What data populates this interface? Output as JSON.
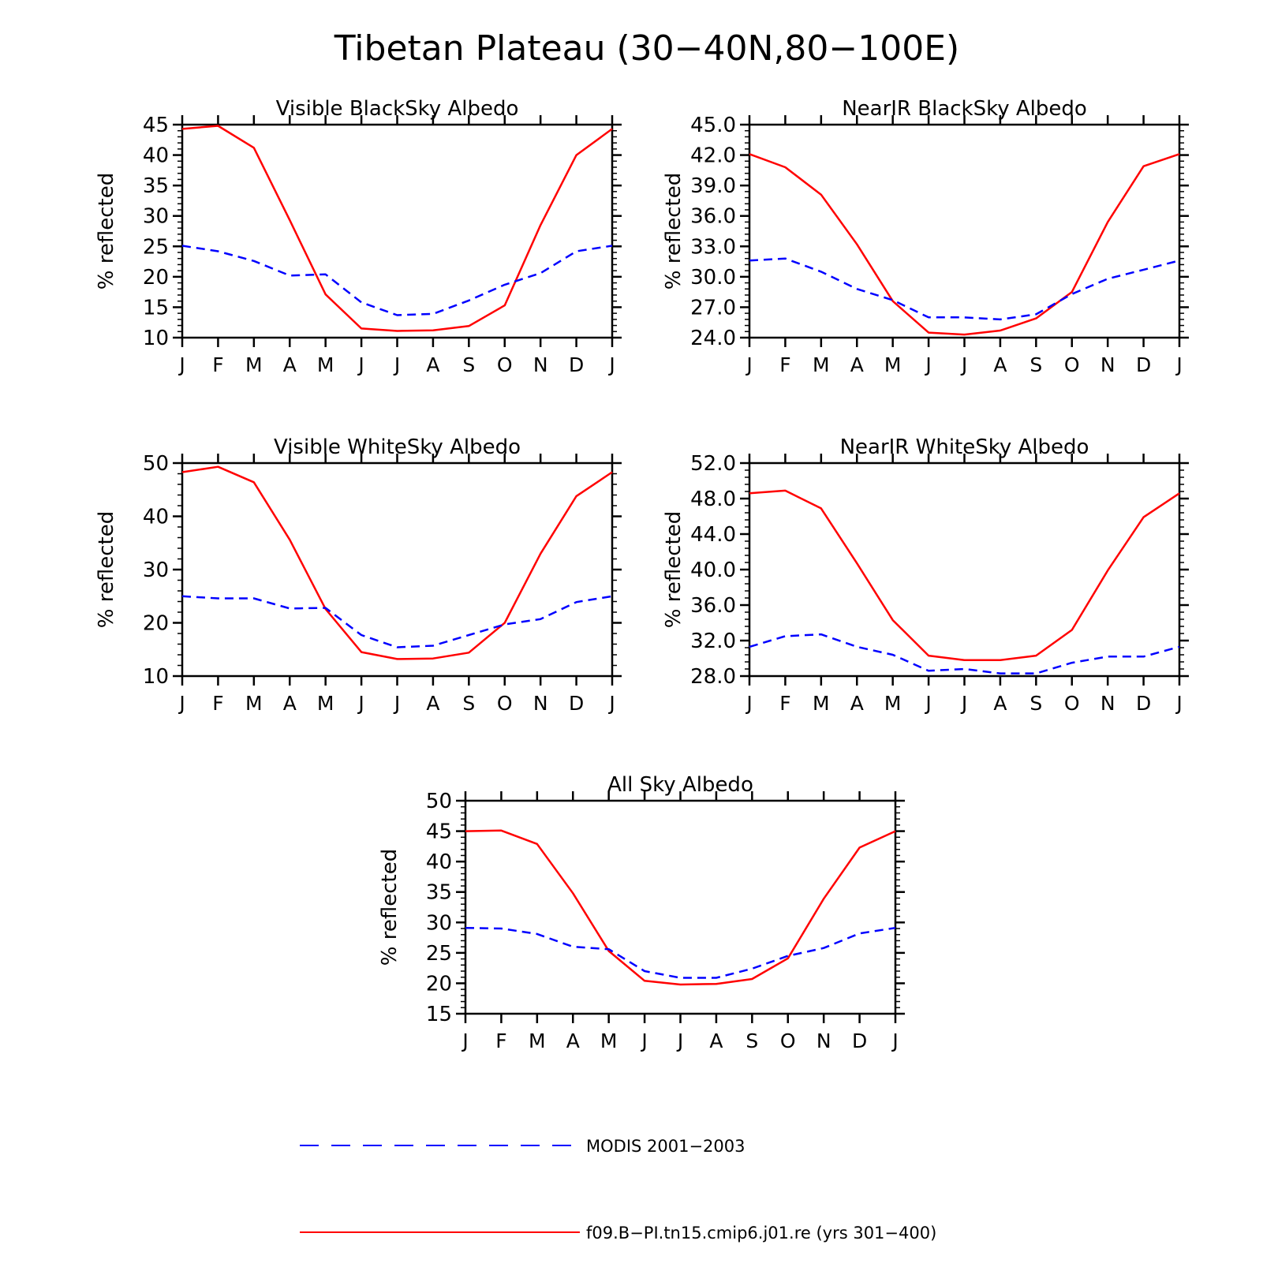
{
  "figure": {
    "title": "Tibetan Plateau (30−40N,80−100E)"
  },
  "legend": {
    "placement": "bottom",
    "entries": [
      {
        "label": "MODIS 2001−2003",
        "color": "#0000ff",
        "style": "dashed"
      },
      {
        "label": "f09.B−PI.tn15.cmip6.j01.re (yrs 301−400)",
        "color": "#ff0000",
        "style": "solid"
      }
    ]
  },
  "chart_data": [
    {
      "type": "line",
      "title": "Visible BlackSky Albedo",
      "ylabel": "% reflected",
      "categories": [
        "J",
        "F",
        "M",
        "A",
        "M",
        "J",
        "J",
        "A",
        "S",
        "O",
        "N",
        "D",
        "J"
      ],
      "ylim": [
        10,
        45
      ],
      "yticks": [
        "10",
        "15",
        "20",
        "25",
        "30",
        "35",
        "40",
        "45"
      ],
      "grid": false,
      "series": [
        {
          "color": "#ff0000",
          "style": "solid",
          "values": [
            44.3,
            44.8,
            41.2,
            29.3,
            17.1,
            11.5,
            11.1,
            11.2,
            11.9,
            15.3,
            28.5,
            40.0,
            44.3
          ]
        },
        {
          "color": "#0000ff",
          "style": "dashed",
          "values": [
            25.1,
            24.2,
            22.6,
            20.2,
            20.4,
            15.8,
            13.7,
            13.9,
            16.1,
            18.7,
            20.6,
            24.2,
            25.1
          ]
        }
      ]
    },
    {
      "type": "line",
      "title": "NearIR BlackSky Albedo",
      "ylabel": "% reflected",
      "categories": [
        "J",
        "F",
        "M",
        "A",
        "M",
        "J",
        "J",
        "A",
        "S",
        "O",
        "N",
        "D",
        "J"
      ],
      "ylim": [
        24.0,
        45.0
      ],
      "yticks": [
        "24.0",
        "27.0",
        "30.0",
        "33.0",
        "36.0",
        "39.0",
        "42.0",
        "45.0"
      ],
      "grid": false,
      "series": [
        {
          "color": "#ff0000",
          "style": "solid",
          "values": [
            42.1,
            40.8,
            38.1,
            33.2,
            27.6,
            24.5,
            24.3,
            24.7,
            25.9,
            28.5,
            35.4,
            40.9,
            42.1
          ]
        },
        {
          "color": "#0000ff",
          "style": "dashed",
          "values": [
            31.6,
            31.8,
            30.5,
            28.8,
            27.7,
            26.0,
            26.0,
            25.8,
            26.3,
            28.3,
            29.8,
            30.7,
            31.6
          ]
        }
      ]
    },
    {
      "type": "line",
      "title": "Visible WhiteSky Albedo",
      "ylabel": "% reflected",
      "categories": [
        "J",
        "F",
        "M",
        "A",
        "M",
        "J",
        "J",
        "A",
        "S",
        "O",
        "N",
        "D",
        "J"
      ],
      "ylim": [
        10,
        50
      ],
      "yticks": [
        "10",
        "20",
        "30",
        "40",
        "50"
      ],
      "grid": false,
      "series": [
        {
          "color": "#ff0000",
          "style": "solid",
          "values": [
            48.3,
            49.3,
            46.4,
            35.6,
            22.6,
            14.5,
            13.2,
            13.3,
            14.4,
            20.0,
            33.0,
            43.8,
            48.3
          ]
        },
        {
          "color": "#0000ff",
          "style": "dashed",
          "values": [
            25.0,
            24.6,
            24.6,
            22.7,
            22.8,
            17.7,
            15.4,
            15.7,
            17.7,
            19.7,
            20.7,
            23.9,
            25.0
          ]
        }
      ]
    },
    {
      "type": "line",
      "title": "NearIR WhiteSky Albedo",
      "ylabel": "% reflected",
      "categories": [
        "J",
        "F",
        "M",
        "A",
        "M",
        "J",
        "J",
        "A",
        "S",
        "O",
        "N",
        "D",
        "J"
      ],
      "ylim": [
        28.0,
        52.0
      ],
      "yticks": [
        "28.0",
        "32.0",
        "36.0",
        "40.0",
        "44.0",
        "48.0",
        "52.0"
      ],
      "grid": false,
      "series": [
        {
          "color": "#ff0000",
          "style": "solid",
          "values": [
            48.6,
            48.9,
            46.9,
            40.7,
            34.3,
            30.3,
            29.8,
            29.8,
            30.3,
            33.2,
            39.9,
            45.9,
            48.6
          ]
        },
        {
          "color": "#0000ff",
          "style": "dashed",
          "values": [
            31.3,
            32.5,
            32.7,
            31.3,
            30.4,
            28.6,
            28.8,
            28.3,
            28.3,
            29.5,
            30.2,
            30.2,
            31.3
          ]
        }
      ]
    },
    {
      "type": "line",
      "title": "All Sky Albedo",
      "ylabel": "% reflected",
      "categories": [
        "J",
        "F",
        "M",
        "A",
        "M",
        "J",
        "J",
        "A",
        "S",
        "O",
        "N",
        "D",
        "J"
      ],
      "ylim": [
        15,
        50
      ],
      "yticks": [
        "15",
        "20",
        "25",
        "30",
        "35",
        "40",
        "45",
        "50"
      ],
      "grid": false,
      "series": [
        {
          "color": "#ff0000",
          "style": "solid",
          "values": [
            45.0,
            45.1,
            42.9,
            34.8,
            25.3,
            20.4,
            19.8,
            19.9,
            20.7,
            24.1,
            33.9,
            42.3,
            45.0
          ]
        },
        {
          "color": "#0000ff",
          "style": "dashed",
          "values": [
            29.1,
            29.0,
            28.1,
            26.0,
            25.6,
            22.0,
            20.9,
            20.9,
            22.4,
            24.5,
            25.8,
            28.2,
            29.1
          ]
        }
      ]
    }
  ]
}
